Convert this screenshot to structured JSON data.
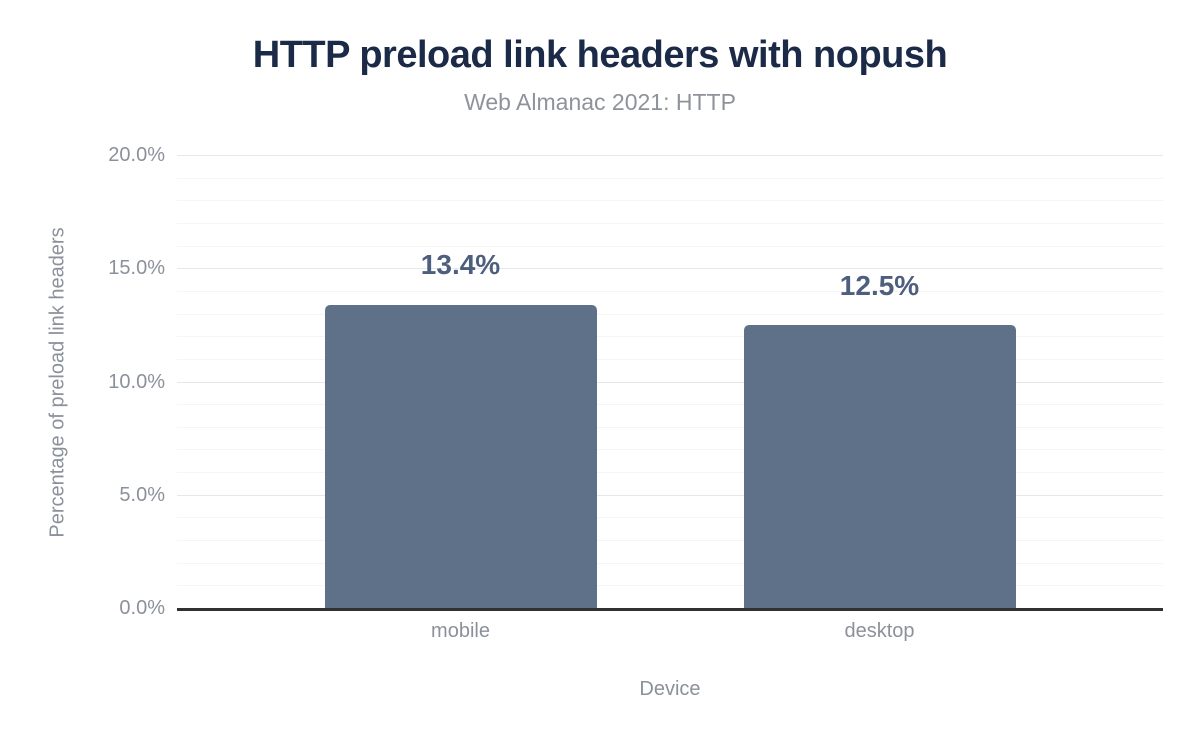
{
  "title": "HTTP preload link headers with nopush",
  "subtitle": "Web Almanac 2021: HTTP",
  "colors": {
    "bar": "#5f7189",
    "title_text": "#1a2a47",
    "subtitle_text": "#8e939b",
    "axis_text": "#8b919b",
    "annotation_text": "#4e5e7e",
    "axis_line": "#313131",
    "grid_major": "#e7e7e7",
    "grid_minor": "#f5f5f5",
    "background": "#ffffff"
  },
  "chart_data": {
    "type": "bar",
    "title": "HTTP preload link headers with nopush",
    "subtitle": "Web Almanac 2021: HTTP",
    "categories": [
      "mobile",
      "desktop"
    ],
    "values": [
      13.4,
      12.5
    ],
    "value_labels": [
      "13.4%",
      "12.5%"
    ],
    "xlabel": "Device",
    "ylabel": "Percentage of preload link headers",
    "ylim": [
      0,
      20
    ],
    "yticks": [
      0,
      5,
      10,
      15,
      20
    ],
    "ytick_labels": [
      "0.0%",
      "5.0%",
      "10.0%",
      "15.0%",
      "20.0%"
    ],
    "minor_grid_step": 1,
    "grid": true,
    "legend_position": "none"
  }
}
